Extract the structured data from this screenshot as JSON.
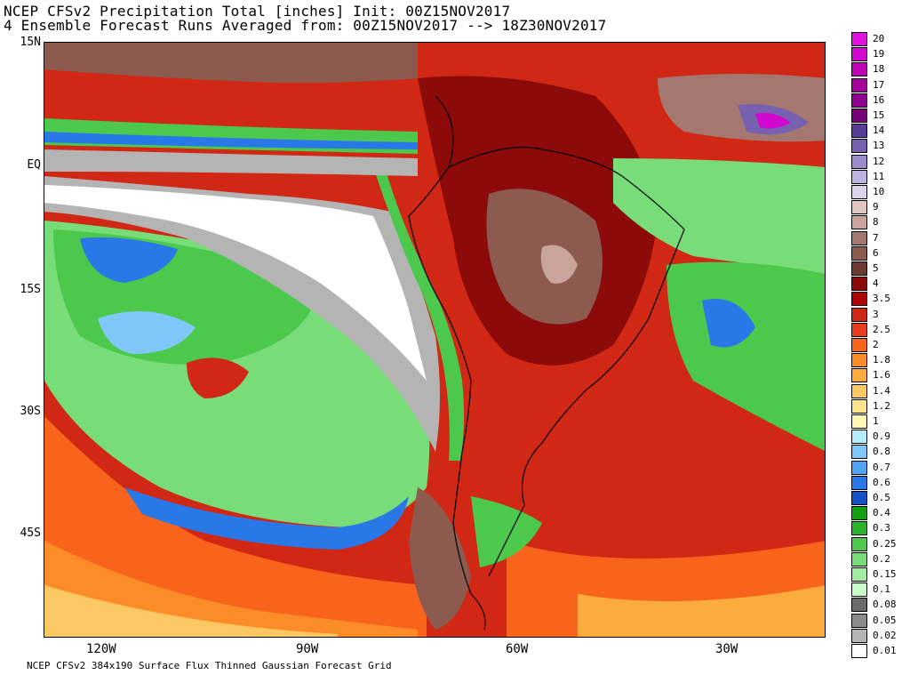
{
  "title_line1": "NCEP CFSv2 Precipitation Total [inches] Init: 00Z15NOV2017",
  "title_line2": "4 Ensemble Forecast Runs Averaged from: 00Z15NOV2017 --> 18Z30NOV2017",
  "footer": "NCEP CFSv2 384x190 Surface Flux Thinned Gaussian Forecast Grid",
  "lat_labels": [
    "15N",
    "EQ",
    "15S",
    "30S",
    "45S"
  ],
  "lon_labels": [
    "120W",
    "90W",
    "60W",
    "30W"
  ],
  "legend": [
    {
      "label": "20",
      "color": "#e010e0"
    },
    {
      "label": "19",
      "color": "#d008d0"
    },
    {
      "label": "18",
      "color": "#c000b8"
    },
    {
      "label": "17",
      "color": "#a8009c"
    },
    {
      "label": "16",
      "color": "#900090"
    },
    {
      "label": "15",
      "color": "#780078"
    },
    {
      "label": "14",
      "color": "#5a3c96"
    },
    {
      "label": "13",
      "color": "#7860b0"
    },
    {
      "label": "12",
      "color": "#9c8ccc"
    },
    {
      "label": "11",
      "color": "#bcb4dc"
    },
    {
      "label": "10",
      "color": "#dcd4e8"
    },
    {
      "label": "9",
      "color": "#e0c8c0"
    },
    {
      "label": "8",
      "color": "#c8a49a"
    },
    {
      "label": "7",
      "color": "#a47870"
    },
    {
      "label": "6",
      "color": "#8c5a4e"
    },
    {
      "label": "5",
      "color": "#6c3a30"
    },
    {
      "label": "4",
      "color": "#8c0a0a"
    },
    {
      "label": "3.5",
      "color": "#b00000"
    },
    {
      "label": "3",
      "color": "#d02814"
    },
    {
      "label": "2.5",
      "color": "#e83c1c"
    },
    {
      "label": "2",
      "color": "#f8641c"
    },
    {
      "label": "1.8",
      "color": "#fc8c28"
    },
    {
      "label": "1.6",
      "color": "#fcac3c"
    },
    {
      "label": "1.4",
      "color": "#fcc864"
    },
    {
      "label": "1.2",
      "color": "#fce48c"
    },
    {
      "label": "1",
      "color": "#fcf8b4"
    },
    {
      "label": "0.9",
      "color": "#b4ecfc"
    },
    {
      "label": "0.8",
      "color": "#80c8fc"
    },
    {
      "label": "0.7",
      "color": "#50a4f4"
    },
    {
      "label": "0.6",
      "color": "#2878e8"
    },
    {
      "label": "0.5",
      "color": "#1450c8"
    },
    {
      "label": "0.4",
      "color": "#10a010"
    },
    {
      "label": "0.3",
      "color": "#28b428"
    },
    {
      "label": "0.25",
      "color": "#4cc84c"
    },
    {
      "label": "0.2",
      "color": "#78dc78"
    },
    {
      "label": "0.15",
      "color": "#a0eca0"
    },
    {
      "label": "0.1",
      "color": "#c8fcc8"
    },
    {
      "label": "0.08",
      "color": "#6a6a6a"
    },
    {
      "label": "0.05",
      "color": "#8c8c8c"
    },
    {
      "label": "0.02",
      "color": "#b4b4b4"
    },
    {
      "label": "0.01",
      "color": "#ffffff"
    }
  ],
  "colors": {
    "frame": "#000000",
    "coast": "#000000"
  }
}
